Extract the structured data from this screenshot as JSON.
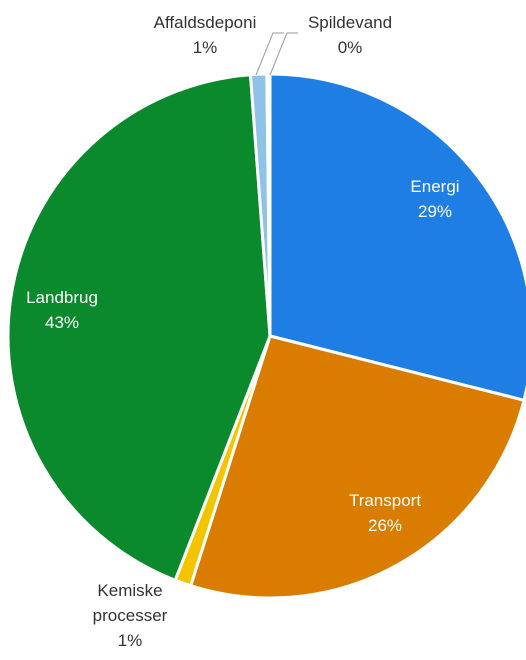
{
  "chart_data": {
    "type": "pie",
    "title": "",
    "slices": [
      {
        "label": "Energi",
        "value": 29,
        "value_label": "29%",
        "color": "#1f7ee3",
        "label_color": "#ffffff"
      },
      {
        "label": "Transport",
        "value": 26,
        "value_label": "26%",
        "color": "#d97c00",
        "label_color": "#ffffff"
      },
      {
        "label": "Kemiske processer",
        "value": 1,
        "value_label": "1%",
        "color": "#f2c500",
        "label_color": "#333333"
      },
      {
        "label": "Landbrug",
        "value": 43,
        "value_label": "43%",
        "color": "#0a8a2d",
        "label_color": "#ffffff"
      },
      {
        "label": "Affaldsdeponi",
        "value": 1,
        "value_label": "1%",
        "color": "#8ec2e6",
        "label_color": "#333333"
      },
      {
        "label": "Spildevand",
        "value": 0,
        "value_label": "0%",
        "color": "#b0c4de",
        "label_color": "#333333"
      }
    ],
    "start_angle": "12 o'clock",
    "direction": "clockwise",
    "legend": "none"
  }
}
